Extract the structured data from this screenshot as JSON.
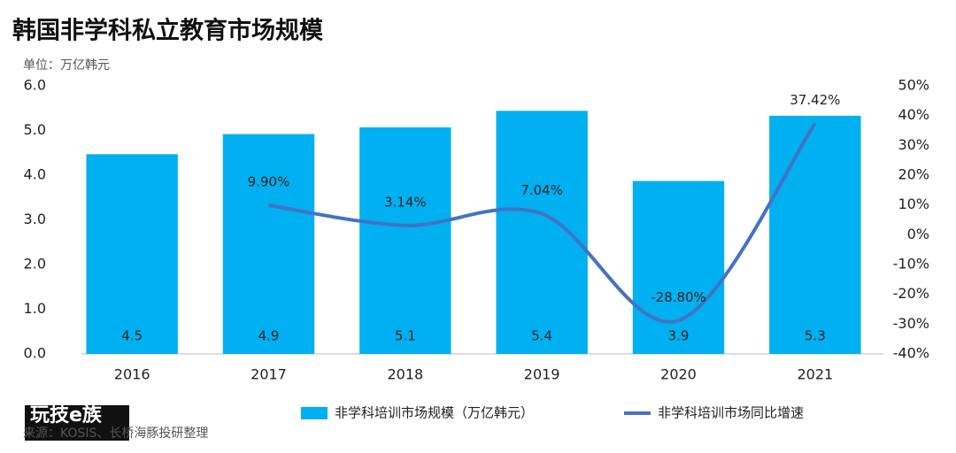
{
  "chart_data": {
    "type": "bar_line",
    "title": "韩国非学科私立教育市场规模",
    "unit_label": "单位：万亿韩元",
    "source": "来源：KOSIS、长桥海豚投研整理",
    "logo": "玩技e族",
    "categories": [
      "2016",
      "2017",
      "2018",
      "2019",
      "2020",
      "2021"
    ],
    "series": [
      {
        "name": "非学科培训市场规模（万亿韩元）",
        "type": "bar",
        "color": "#00b0f0",
        "values": [
          4.47,
          4.92,
          5.07,
          5.44,
          3.87,
          5.33
        ],
        "value_labels": [
          "4.5",
          "4.9",
          "5.1",
          "5.4",
          "3.9",
          "5.3"
        ]
      },
      {
        "name": "非学科培训市场同比增速",
        "type": "line",
        "axis": "y2",
        "color": "#4472c4",
        "values": [
          null,
          9.9,
          3.14,
          7.04,
          -28.8,
          37.42
        ],
        "value_labels": [
          null,
          "9.90%",
          "3.14%",
          "7.04%",
          "-28.80%",
          "37.42%"
        ]
      }
    ],
    "ylim": [
      0,
      6
    ],
    "yticks": [
      {
        "value": 0,
        "label": "0.0"
      },
      {
        "value": 1,
        "label": "1.0"
      },
      {
        "value": 2,
        "label": "2.0"
      },
      {
        "value": 3,
        "label": "3.0"
      },
      {
        "value": 4,
        "label": "4.0"
      },
      {
        "value": 5,
        "label": "5.0"
      },
      {
        "value": 6,
        "label": "6.0"
      }
    ],
    "y2lim": [
      -40,
      50
    ],
    "y2ticks": [
      {
        "value": -40,
        "label": "-40%"
      },
      {
        "value": -30,
        "label": "-30%"
      },
      {
        "value": -20,
        "label": "-20%"
      },
      {
        "value": -10,
        "label": "-10%"
      },
      {
        "value": 0,
        "label": "0%"
      },
      {
        "value": 10,
        "label": "10%"
      },
      {
        "value": 20,
        "label": "20%"
      },
      {
        "value": 30,
        "label": "30%"
      },
      {
        "value": 40,
        "label": "40%"
      },
      {
        "value": 50,
        "label": "50%"
      }
    ],
    "legend": "bottom"
  }
}
